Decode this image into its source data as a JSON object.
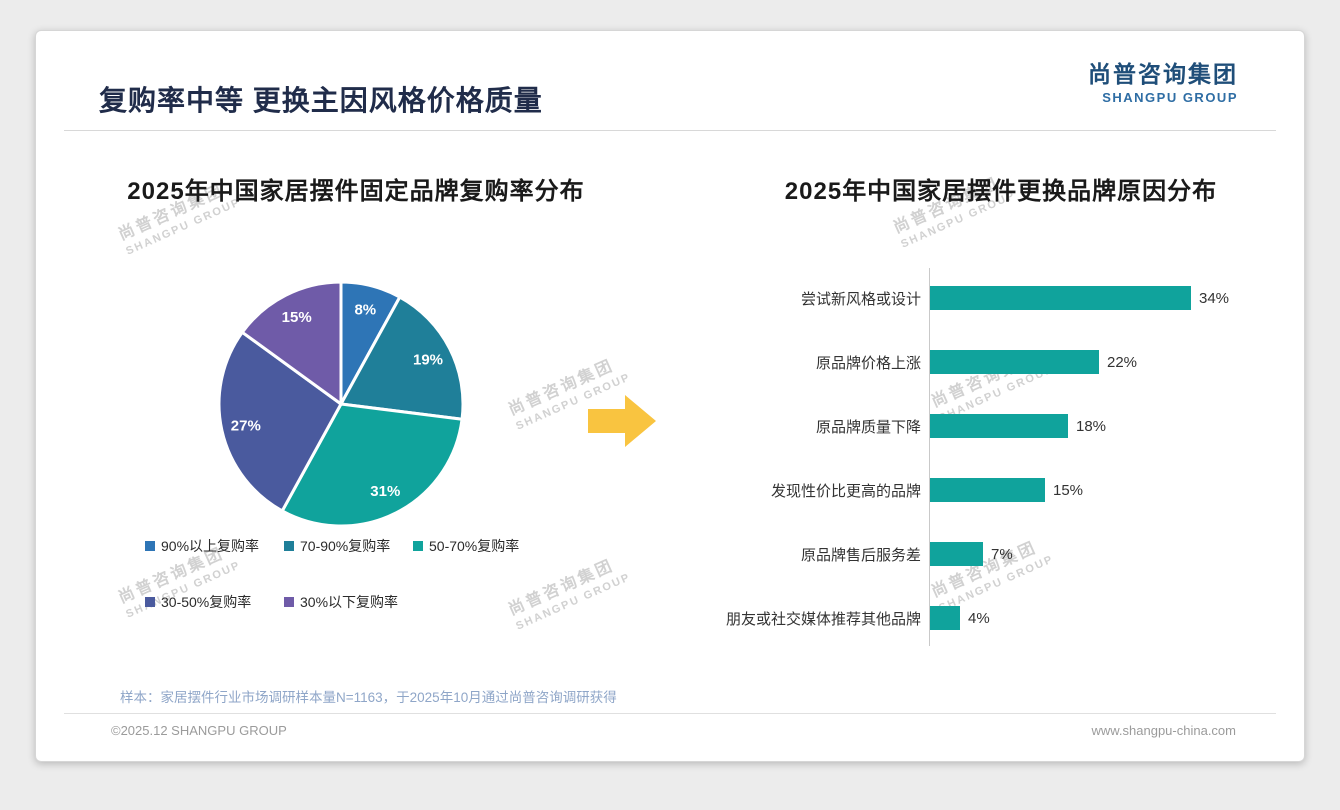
{
  "slide": {
    "title": "复购率中等 更换主因风格价格质量",
    "logo": {
      "cn": "尚普咨询集团",
      "en": "SHANGPU GROUP"
    },
    "watermark": {
      "cn": "尚普咨询集团",
      "en": "SHANGPU GROUP"
    },
    "footnote": "样本：家居摆件行业市场调研样本量N=1163，于2025年10月通过尚普咨询调研获得",
    "footer": {
      "left": "©2025.12 SHANGPU GROUP",
      "right": "www.shangpu-china.com"
    },
    "colors": {
      "brand_navy": "#1f4e79",
      "accent_teal": "#10a39c",
      "arrow_gold": "#f9c440"
    }
  },
  "chart_data": [
    {
      "type": "pie",
      "title": "2025年中国家居摆件固定品牌复购率分布",
      "labels": [
        "90%以上复购率",
        "70-90%复购率",
        "50-70%复购率",
        "30-50%复购率",
        "30%以下复购率"
      ],
      "values": [
        8,
        19,
        31,
        27,
        15
      ],
      "unit": "%",
      "colors": [
        "#2e75b6",
        "#1f7f99",
        "#10a39c",
        "#4a5a9e",
        "#6f5ba8"
      ],
      "legend_position": "bottom",
      "start_angle_from_top_deg": 0,
      "direction": "clockwise"
    },
    {
      "type": "bar",
      "title": "2025年中国家居摆件更换品牌原因分布",
      "orientation": "horizontal",
      "categories": [
        "尝试新风格或设计",
        "原品牌价格上涨",
        "原品牌质量下降",
        "发现性价比更高的品牌",
        "原品牌售后服务差",
        "朋友或社交媒体推荐其他品牌"
      ],
      "values": [
        34,
        22,
        18,
        15,
        7,
        4
      ],
      "unit": "%",
      "bar_color": "#10a39c",
      "xlim": [
        0,
        40
      ],
      "grid": false,
      "legend": false
    }
  ]
}
